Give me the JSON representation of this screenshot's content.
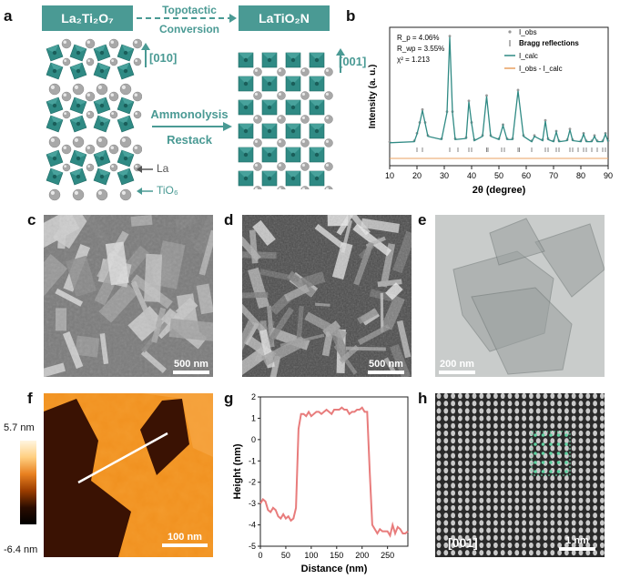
{
  "panels": {
    "a": "a",
    "b": "b",
    "c": "c",
    "d": "d",
    "e": "e",
    "f": "f",
    "g": "g",
    "h": "h"
  },
  "panel_a": {
    "left_formula": "La₂Ti₂O₇",
    "right_formula": "LaTiO₂N",
    "top_arrow_l1": "Topotactic",
    "top_arrow_l2": "Conversion",
    "dir_left": "[010]",
    "dir_right": "[001]",
    "mid_l1": "Ammonolysis",
    "mid_l2": "Restack",
    "legend_la": "La",
    "legend_tio6": "TiO₆",
    "colors": {
      "teal": "#4a9a94",
      "octa": "#2f8a84",
      "sphere": "#a8a8a8"
    }
  },
  "panel_b": {
    "stats": {
      "rp": "R_p = 4.06%",
      "rwp": "R_wp = 3.55%",
      "chi2": "χ² = 1.213"
    },
    "legend": [
      "I_obs",
      "Bragg reflections",
      "I_calc",
      "I_obs - I_calc"
    ],
    "xlabel": "2θ (degree)",
    "ylabel": "Intensity (a. u.)"
  },
  "chart_data": [
    {
      "type": "line",
      "panel": "b",
      "xlabel": "2θ (degree)",
      "ylabel": "Intensity (a. u.)",
      "xlim": [
        10,
        90
      ],
      "xticks": [
        10,
        20,
        30,
        40,
        50,
        60,
        70,
        80,
        90
      ],
      "series": [
        {
          "name": "I_calc",
          "x": [
            10,
            19,
            20,
            21,
            22,
            23,
            24,
            29,
            31,
            32,
            33,
            34,
            38,
            39,
            40,
            41,
            44,
            45.5,
            47,
            50,
            51.5,
            53,
            55,
            57,
            59,
            62,
            63,
            66,
            67,
            68,
            70,
            71,
            72,
            75,
            76,
            77,
            80,
            81,
            82,
            84,
            85,
            86,
            88,
            89,
            90
          ],
          "y": [
            0.02,
            0.03,
            0.1,
            0.2,
            0.32,
            0.2,
            0.08,
            0.05,
            0.3,
            1.0,
            0.3,
            0.05,
            0.06,
            0.4,
            0.2,
            0.04,
            0.08,
            0.45,
            0.08,
            0.05,
            0.18,
            0.05,
            0.05,
            0.5,
            0.08,
            0.03,
            0.08,
            0.04,
            0.22,
            0.05,
            0.03,
            0.12,
            0.03,
            0.04,
            0.14,
            0.04,
            0.03,
            0.1,
            0.03,
            0.03,
            0.08,
            0.03,
            0.03,
            0.1,
            0.03
          ]
        }
      ],
      "bragg_positions": [
        20,
        22,
        32,
        35,
        39,
        40,
        45.5,
        46,
        51,
        52,
        57,
        57.5,
        62,
        67,
        68,
        71,
        72,
        76,
        77,
        79,
        81,
        82,
        84,
        86,
        88,
        89
      ]
    },
    {
      "type": "line",
      "panel": "g",
      "xlabel": "Distance (nm)",
      "ylabel": "Height (nm)",
      "xlim": [
        0,
        290
      ],
      "ylim": [
        -5,
        2
      ],
      "xticks": [
        0,
        50,
        100,
        150,
        200,
        250
      ],
      "yticks": [
        -5,
        -4,
        -3,
        -2,
        -1,
        0,
        1,
        2
      ],
      "series": [
        {
          "x": [
            0,
            5,
            10,
            15,
            20,
            25,
            30,
            35,
            40,
            45,
            50,
            55,
            60,
            65,
            70,
            75,
            80,
            85,
            90,
            95,
            100,
            105,
            110,
            115,
            120,
            125,
            130,
            135,
            140,
            145,
            150,
            155,
            160,
            165,
            170,
            175,
            180,
            185,
            190,
            195,
            200,
            205,
            210,
            215,
            220,
            225,
            230,
            235,
            240,
            245,
            250,
            255,
            260,
            265,
            270,
            275,
            280,
            285,
            290
          ],
          "y": [
            -3.0,
            -2.8,
            -2.9,
            -3.3,
            -3.4,
            -3.2,
            -3.3,
            -3.6,
            -3.7,
            -3.5,
            -3.7,
            -3.6,
            -3.8,
            -3.7,
            -3.2,
            0.5,
            1.2,
            1.2,
            1.1,
            1.3,
            1.1,
            1.2,
            1.3,
            1.3,
            1.2,
            1.3,
            1.4,
            1.3,
            1.2,
            1.4,
            1.4,
            1.4,
            1.5,
            1.4,
            1.4,
            1.2,
            1.3,
            1.3,
            1.4,
            1.4,
            1.5,
            1.3,
            1.3,
            -1.5,
            -4.0,
            -4.2,
            -4.4,
            -4.2,
            -4.3,
            -4.3,
            -4.3,
            -4.5,
            -4.0,
            -4.4,
            -4.1,
            -4.2,
            -4.4,
            -4.4,
            -4.3
          ]
        }
      ]
    }
  ],
  "panel_c": {
    "scale": "500 nm"
  },
  "panel_d": {
    "scale": "500 nm"
  },
  "panel_e": {
    "scale": "200 nm"
  },
  "panel_f": {
    "scale": "100 nm",
    "cbar_max": "5.7 nm",
    "cbar_min": "-6.4 nm"
  },
  "panel_h": {
    "zone": "[001]",
    "scale": "1 nm"
  }
}
